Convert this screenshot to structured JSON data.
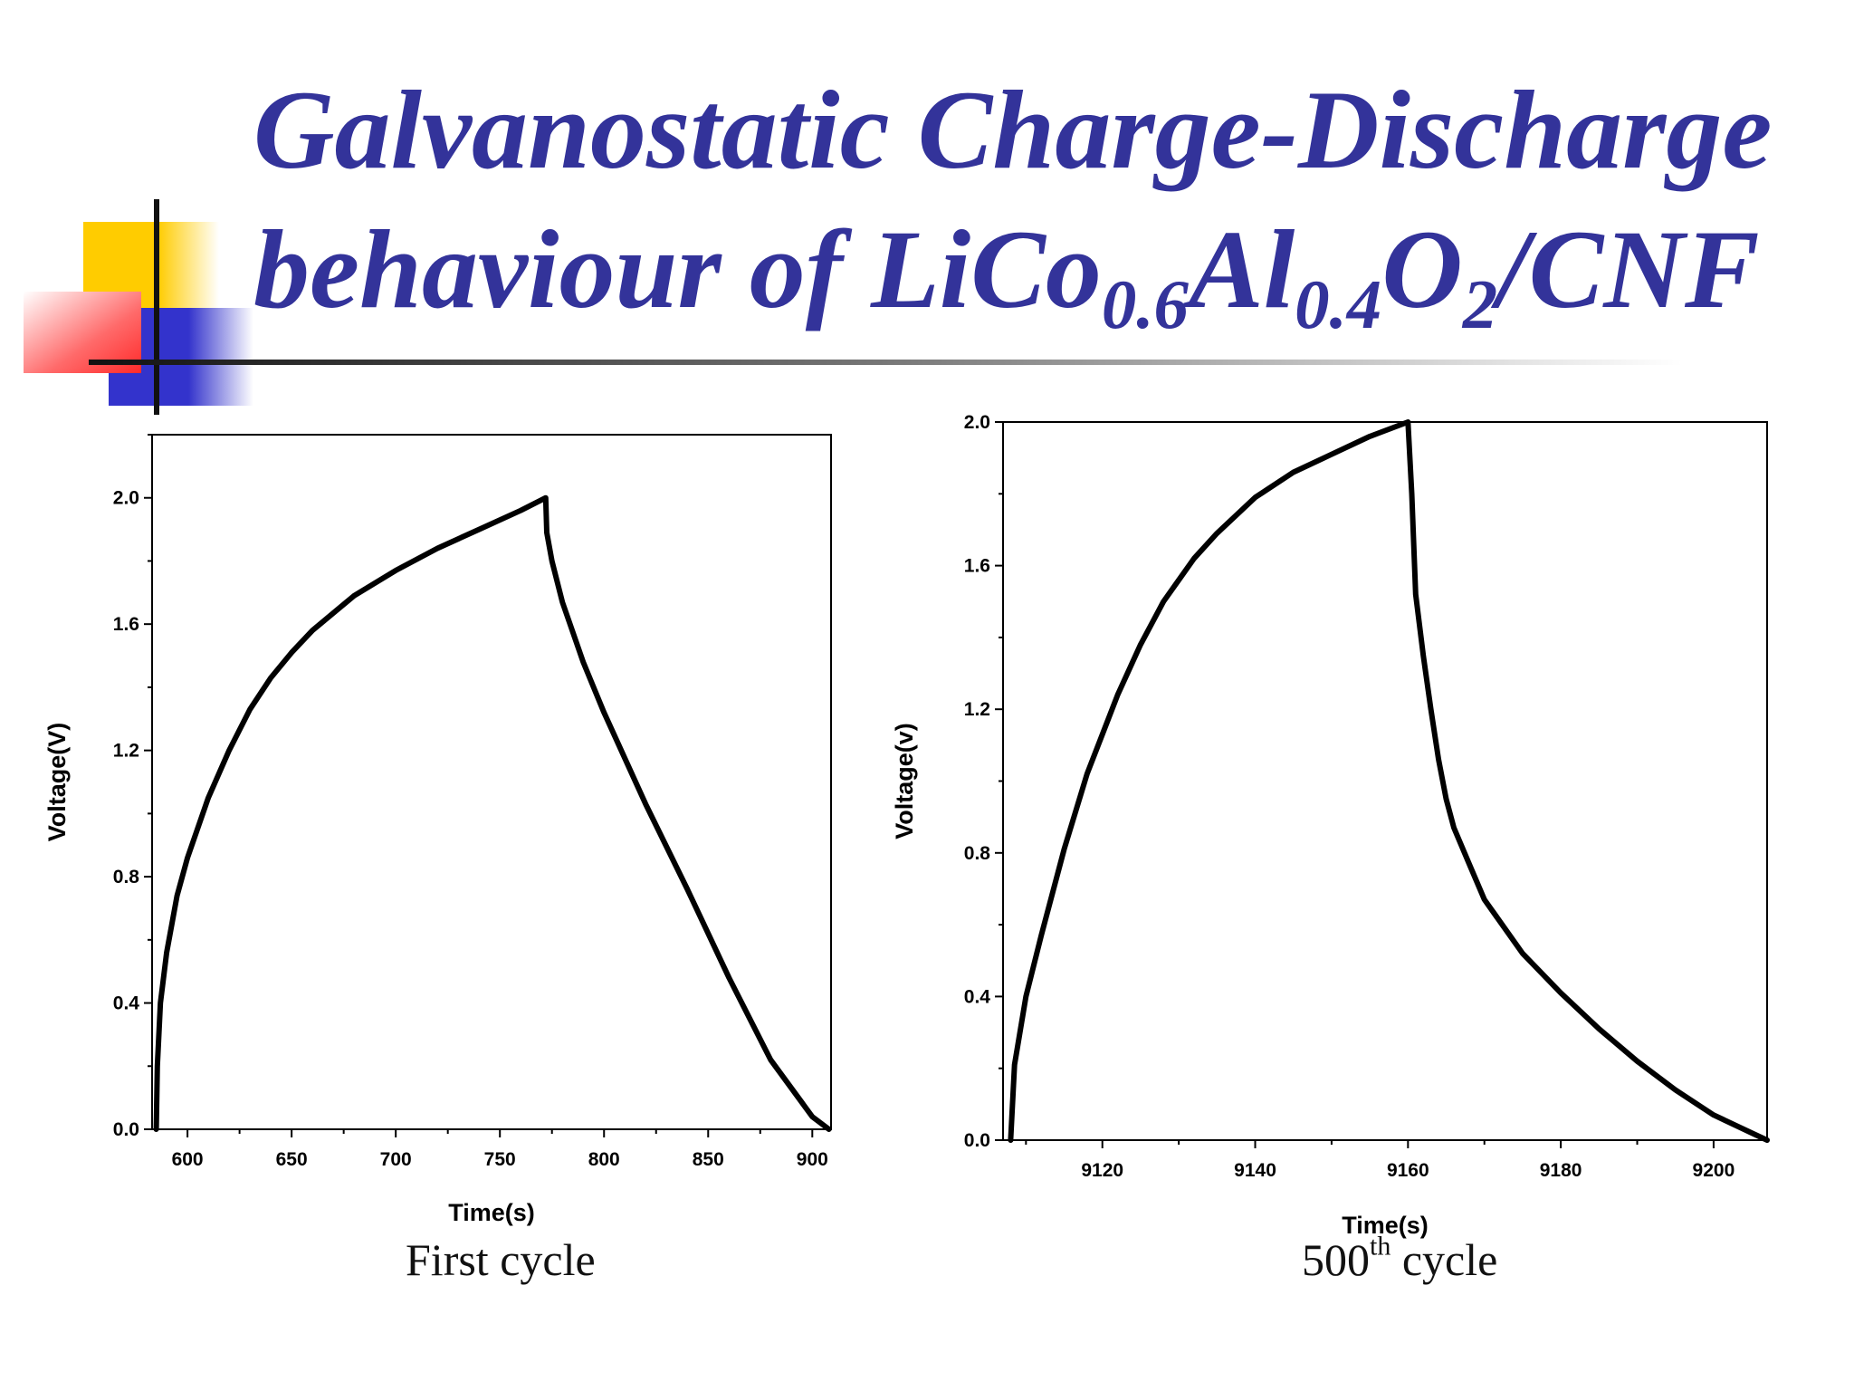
{
  "title": {
    "line1": "Galvanostatic Charge-Discharge",
    "line2_prefix": "behaviour of LiCo",
    "sub_co": "0.6",
    "al": "Al",
    "sub_al": "0.4",
    "o": "O",
    "sub_o": "2",
    "suffix": "/CNF"
  },
  "colors": {
    "title": "#33339a",
    "deco_yellow": "#ffcc00",
    "deco_red": "#ff3333",
    "deco_blue": "#3333cc",
    "curve": "#000000"
  },
  "captions": {
    "first": "First cycle",
    "second_num": "500",
    "second_sup": "th",
    "second_rest": " cycle"
  },
  "chart_data": [
    {
      "type": "line",
      "title": "",
      "xlabel": "Time(s)",
      "ylabel": "Voltage(V)",
      "xlim": [
        583,
        909
      ],
      "ylim": [
        0,
        2.2
      ],
      "x_ticks": [
        600,
        650,
        700,
        750,
        800,
        850,
        900
      ],
      "y_ticks": [
        0.0,
        0.4,
        0.8,
        1.2,
        1.6,
        2.0
      ],
      "x_tick_labels": [
        "600",
        "650",
        "700",
        "750",
        "800",
        "850",
        "900"
      ],
      "y_tick_labels": [
        "0.0",
        "0.4",
        "0.8",
        "1.2",
        "1.6",
        "2.0"
      ],
      "grid": false,
      "legend": "none",
      "series": [
        {
          "x": [
            585,
            585.5,
            587,
            590,
            595,
            600,
            610,
            620,
            630,
            640,
            650,
            660,
            680,
            700,
            720,
            740,
            760,
            772,
            772.5,
            775,
            780,
            790,
            800,
            820,
            840,
            860,
            880,
            900,
            908
          ],
          "y": [
            0.0,
            0.2,
            0.4,
            0.56,
            0.74,
            0.86,
            1.05,
            1.2,
            1.33,
            1.43,
            1.51,
            1.58,
            1.69,
            1.77,
            1.84,
            1.9,
            1.96,
            2.0,
            1.89,
            1.8,
            1.67,
            1.48,
            1.32,
            1.03,
            0.76,
            0.48,
            0.22,
            0.04,
            0.0
          ]
        }
      ]
    },
    {
      "type": "line",
      "title": "",
      "xlabel": "Time(s)",
      "ylabel": "Voltage(v)",
      "xlim": [
        9107,
        9207
      ],
      "ylim": [
        0,
        2.0
      ],
      "x_ticks": [
        9120,
        9140,
        9160,
        9180,
        9200
      ],
      "y_ticks": [
        0.0,
        0.4,
        0.8,
        1.2,
        1.6,
        2.0
      ],
      "x_tick_labels": [
        "9120",
        "9140",
        "9160",
        "9180",
        "9200"
      ],
      "y_tick_labels": [
        "0.0",
        "0.4",
        "0.8",
        "1.2",
        "1.6",
        "2.0"
      ],
      "grid": false,
      "legend": "none",
      "series": [
        {
          "x": [
            9108,
            9108.5,
            9110,
            9112,
            9115,
            9118,
            9120,
            9122,
            9125,
            9128,
            9130,
            9132,
            9135,
            9140,
            9145,
            9150,
            9155,
            9160,
            9160.5,
            9161,
            9162,
            9163,
            9164,
            9165,
            9166,
            9168,
            9170,
            9175,
            9180,
            9185,
            9190,
            9195,
            9200,
            9205,
            9207
          ],
          "y": [
            0.0,
            0.21,
            0.4,
            0.57,
            0.81,
            1.02,
            1.13,
            1.24,
            1.38,
            1.5,
            1.56,
            1.62,
            1.69,
            1.79,
            1.86,
            1.91,
            1.96,
            2.0,
            1.8,
            1.52,
            1.35,
            1.2,
            1.06,
            0.95,
            0.87,
            0.77,
            0.67,
            0.52,
            0.41,
            0.31,
            0.22,
            0.14,
            0.07,
            0.02,
            0.0
          ]
        }
      ]
    }
  ]
}
